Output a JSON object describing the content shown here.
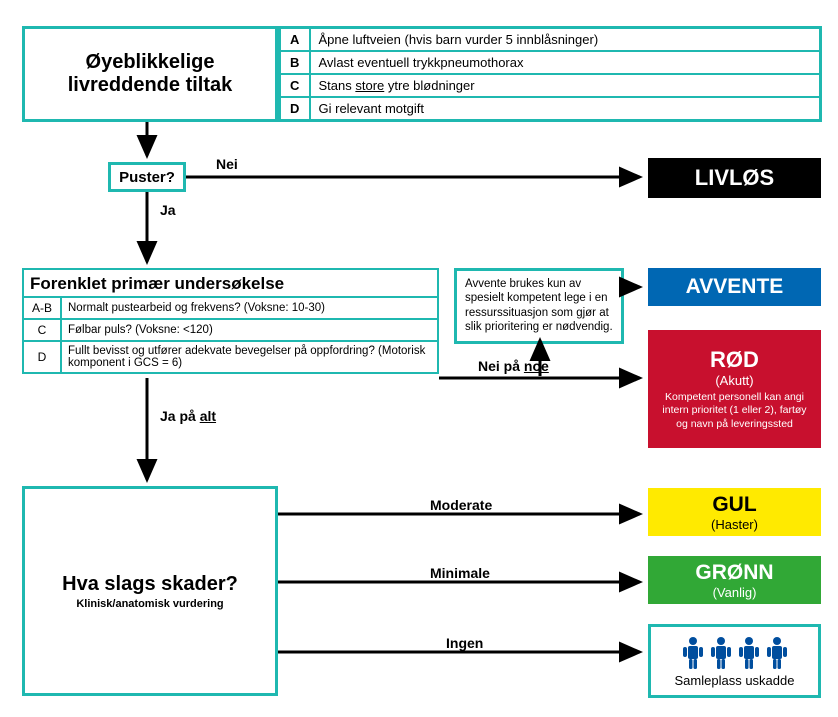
{
  "colors": {
    "teal": "#1fb8b0",
    "black": "#000000",
    "avvente_bg": "#0067b3",
    "red_bg": "#c8102e",
    "yellow_bg": "#ffea00",
    "yellow_fg": "#000000",
    "green_bg": "#31a836",
    "people_icon": "#004e9e"
  },
  "immediate": {
    "title_l1": "Øyeblikkelige",
    "title_l2": "livreddende tiltak",
    "rows": [
      {
        "letter": "A",
        "text": "Åpne luftveien (hvis barn vurder 5 innblåsninger)"
      },
      {
        "letter": "B",
        "text": "Avlast eventuell trykkpneumothorax"
      },
      {
        "letter": "C",
        "text": "Stans store ytre blødninger",
        "underline_word": "store"
      },
      {
        "letter": "D",
        "text": "Gi relevant motgift"
      }
    ]
  },
  "decision1": {
    "question": "Puster?",
    "no": "Nei",
    "yes": "Ja"
  },
  "lifeless": {
    "label": "LIVLØS"
  },
  "primary": {
    "header": "Forenklet primær undersøkelse",
    "rows": [
      {
        "letter": "A-B",
        "text": "Normalt pustearbeid og frekvens? (Voksne: 10-30)"
      },
      {
        "letter": "C",
        "text": "Følbar puls? (Voksne: <120)"
      },
      {
        "letter": "D",
        "text": "Fullt bevisst og utfører adekvate bevegelser på oppfordring? (Motorisk komponent i GCS = 6)"
      }
    ]
  },
  "avvente_note": "Avvente brukes kun av spesielt kompetent lege i en ressurssituasjon som gjør at slik prioritering er nødvendig.",
  "badges": {
    "avvente": {
      "title": "AVVENTE"
    },
    "red": {
      "title": "RØD",
      "sub1": "(Akutt)",
      "sub2": "Kompetent personell kan angi intern prioritet (1 eller 2), fartøy og navn på leveringssted"
    },
    "yellow": {
      "title": "GUL",
      "sub1": "(Haster)"
    },
    "green": {
      "title": "GRØNN",
      "sub1": "(Vanlig)"
    }
  },
  "branch_labels": {
    "no_any": "Nei på noe",
    "yes_all": "Ja på alt",
    "moderate": "Moderate",
    "minimal": "Minimale",
    "none": "Ingen"
  },
  "skader": {
    "title": "Hva slags skader?",
    "subtitle": "Klinisk/anatomisk vurdering"
  },
  "uninjured": {
    "people": "👤👤👤👤",
    "label": "Samleplass uskadde"
  }
}
